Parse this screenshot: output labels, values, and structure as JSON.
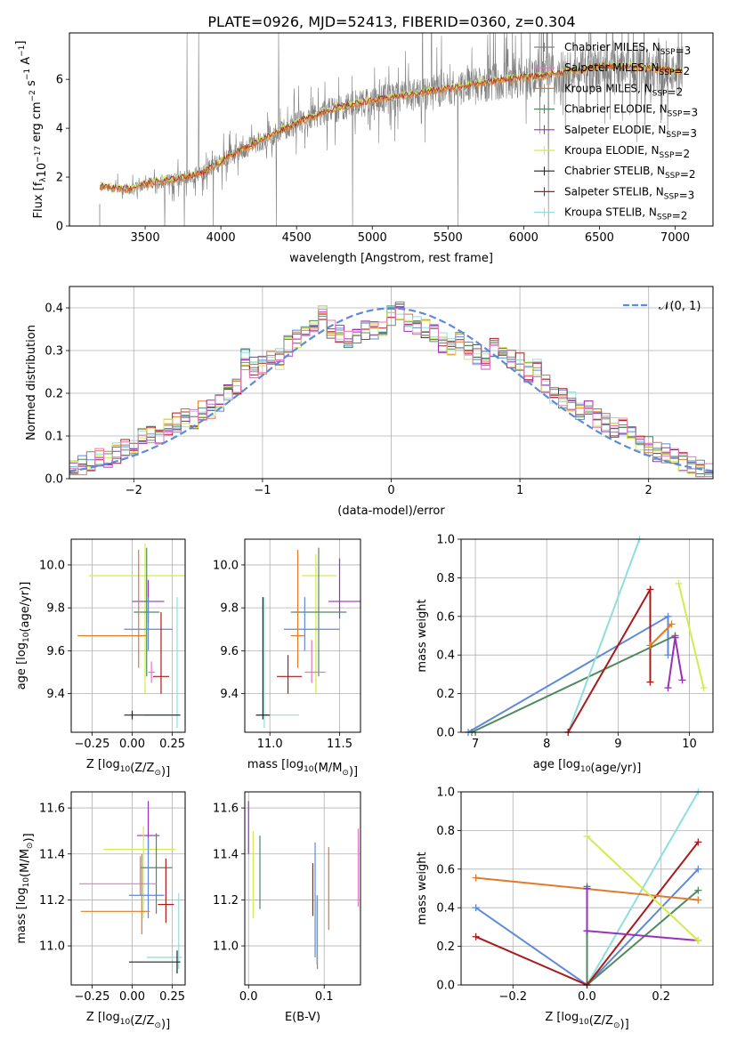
{
  "title": "PLATE=0926, MJD=52413, FIBERID=0360, z=0.304",
  "colors": {
    "Chabrier MILES": "#7f7f7f",
    "Salpeter MILES": "#e377c2",
    "Kroupa MILES": "#ff7f0e",
    "Chabrier ELODIE": "#2ca02c",
    "Salpeter ELODIE": "#9b30b8",
    "Kroupa ELODIE": "#d5e84a",
    "Chabrier STELIB": "#333333",
    "Salpeter STELIB": "#cc1111",
    "Kroupa STELIB": "#7fd6d6",
    "c_blue": "#5f8ad9",
    "c_orange": "#e07b2a",
    "c_green": "#4f8a5f",
    "c_cyan": "#8fdede",
    "c_red": "#aa1a1a",
    "c_purple": "#9b30b8",
    "c_yellow": "#d5ea50",
    "c_gray": "#808080",
    "c_pink": "#e377c2",
    "c_black": "#222222",
    "c_normal": "#5b8bd9"
  },
  "chart_data": [
    {
      "id": "spectrum",
      "type": "line",
      "xlabel": "wavelength [Angstrom, rest frame]",
      "ylabel_parts": [
        "Flux [f",
        "λ",
        "10",
        "−17",
        " erg cm",
        "−2",
        " s",
        "−1",
        " A",
        "−1",
        "]"
      ],
      "xlim": [
        3000,
        7250
      ],
      "ylim": [
        0,
        7.9
      ],
      "xticks": [
        3500,
        4000,
        4500,
        5000,
        5500,
        6000,
        6500,
        7000
      ],
      "yticks": [
        0,
        2,
        4,
        6
      ],
      "legend_position": "upper right",
      "legend": [
        {
          "label": "Chabrier MILES, N",
          "sub": "SSP",
          "tail": "=3",
          "color_key": "c_gray"
        },
        {
          "label": "Salpeter MILES, N",
          "sub": "SSP",
          "tail": "=2",
          "color_key": "c_pink"
        },
        {
          "label": "Kroupa MILES, N",
          "sub": "SSP",
          "tail": "=2",
          "color_key": "c_orange"
        },
        {
          "label": "Chabrier ELODIE, N",
          "sub": "SSP",
          "tail": "=3",
          "color_key": "c_green"
        },
        {
          "label": "Salpeter ELODIE, N",
          "sub": "SSP",
          "tail": "=3",
          "color_key": "c_purple"
        },
        {
          "label": "Kroupa ELODIE, N",
          "sub": "SSP",
          "tail": "=2",
          "color_key": "c_yellow"
        },
        {
          "label": "Chabrier STELIB, N",
          "sub": "SSP",
          "tail": "=2",
          "color_key": "c_black"
        },
        {
          "label": "Salpeter STELIB, N",
          "sub": "SSP",
          "tail": "=3",
          "color_key": "c_red"
        },
        {
          "label": "Kroupa STELIB, N",
          "sub": "SSP",
          "tail": "=2",
          "color_key": "c_cyan"
        }
      ],
      "data_range": [
        3200,
        7050
      ],
      "continuum": [
        [
          3200,
          1.6
        ],
        [
          3400,
          1.5
        ],
        [
          3500,
          1.7
        ],
        [
          3700,
          1.9
        ],
        [
          3850,
          2.1
        ],
        [
          3950,
          2.4
        ],
        [
          4100,
          3.0
        ],
        [
          4300,
          3.6
        ],
        [
          4500,
          4.2
        ],
        [
          4700,
          4.7
        ],
        [
          4900,
          5.0
        ],
        [
          5100,
          5.2
        ],
        [
          5300,
          5.4
        ],
        [
          5500,
          5.6
        ],
        [
          5700,
          5.8
        ],
        [
          5900,
          6.0
        ],
        [
          6100,
          6.1
        ],
        [
          6300,
          6.3
        ],
        [
          6500,
          6.5
        ],
        [
          6700,
          6.5
        ],
        [
          7050,
          6.3
        ]
      ]
    },
    {
      "id": "residuals",
      "type": "histogram",
      "xlabel": "(data-model)/error",
      "ylabel": "Normed distribution",
      "xlim": [
        -2.5,
        2.5
      ],
      "ylim": [
        0,
        0.45
      ],
      "xticks": [
        -2,
        -1,
        0,
        1,
        2
      ],
      "yticks": [
        0.0,
        0.1,
        0.2,
        0.3,
        0.4
      ],
      "legend_label": "𝒩(0, 1)",
      "legend_position": "upper right",
      "bin_width": 0.1,
      "base_shape": [
        0.03,
        0.03,
        0.04,
        0.05,
        0.05,
        0.06,
        0.07,
        0.08,
        0.1,
        0.1,
        0.1,
        0.12,
        0.13,
        0.14,
        0.14,
        0.16,
        0.16,
        0.18,
        0.2,
        0.21,
        0.28,
        0.26,
        0.27,
        0.29,
        0.28,
        0.31,
        0.33,
        0.35,
        0.36,
        0.38,
        0.35,
        0.34,
        0.33,
        0.34,
        0.35,
        0.35,
        0.36,
        0.38,
        0.39,
        0.37,
        0.36,
        0.35,
        0.34,
        0.32,
        0.31,
        0.32,
        0.3,
        0.29,
        0.28,
        0.31,
        0.29,
        0.28,
        0.27,
        0.25,
        0.26,
        0.22,
        0.2,
        0.19,
        0.18,
        0.16,
        0.17,
        0.14,
        0.13,
        0.12,
        0.12,
        0.1,
        0.09,
        0.08,
        0.06,
        0.06,
        0.05,
        0.04,
        0.03,
        0.02,
        0.02
      ]
    },
    {
      "id": "age_vs_Z",
      "type": "errorbar",
      "xlabel_parts": [
        "Z [log",
        "10",
        "(Z/Z",
        "⊙",
        ")]"
      ],
      "ylabel_parts": [
        "age  [log",
        "10",
        "(age/yr)]"
      ],
      "xlim": [
        -0.38,
        0.33
      ],
      "ylim": [
        9.22,
        10.12
      ],
      "xticks": [
        -0.25,
        0.0,
        0.25
      ],
      "yticks": [
        9.4,
        9.6,
        9.8,
        10.0
      ],
      "points": [
        {
          "c": "c_yellow",
          "x": 0.08,
          "xe": [
            0.35,
            0.3
          ],
          "y": 9.95,
          "ye": [
            0.55,
            0.15
          ]
        },
        {
          "c": "c_purple",
          "x": 0.1,
          "xe": [
            0.1,
            0.1
          ],
          "y": 9.83,
          "ye": [
            0.1,
            0.1
          ]
        },
        {
          "c": "c_green",
          "x": 0.09,
          "xe": [
            0.08,
            0.08
          ],
          "y": 9.78,
          "ye": [
            0.3,
            0.3
          ]
        },
        {
          "c": "c_blue",
          "x": 0.1,
          "xe": [
            0.15,
            0.15
          ],
          "y": 9.7,
          "ye": [
            0.1,
            0.15
          ]
        },
        {
          "c": "c_orange",
          "x": 0.04,
          "xe": [
            0.38,
            0.05
          ],
          "y": 9.67,
          "ye": [
            0.15,
            0.4
          ]
        },
        {
          "c": "c_red",
          "x": 0.18,
          "xe": [
            0.05,
            0.05
          ],
          "y": 9.48,
          "ye": [
            0.08,
            0.3
          ]
        },
        {
          "c": "c_cyan",
          "x": 0.28,
          "xe": [
            0.2,
            0.02
          ],
          "y": 9.3,
          "ye": [
            0.06,
            0.55
          ]
        },
        {
          "c": "c_black",
          "x": 0.0,
          "xe": [
            0.05,
            0.3
          ],
          "y": 9.3,
          "ye": [
            0.02,
            0.02
          ]
        },
        {
          "c": "c_pink",
          "x": 0.12,
          "xe": [
            0.02,
            0.02
          ],
          "y": 9.5,
          "ye": [
            0.05,
            0.05
          ]
        }
      ]
    },
    {
      "id": "age_vs_mass",
      "type": "errorbar",
      "xlabel_parts": [
        "mass [log",
        "10",
        "(M/M",
        "⊙",
        ")]"
      ],
      "xlim": [
        10.82,
        11.65
      ],
      "ylim": [
        9.22,
        10.12
      ],
      "xticks": [
        11.0,
        11.5
      ],
      "yticks": [
        9.4,
        9.6,
        9.8,
        10.0
      ],
      "points": [
        {
          "c": "c_yellow",
          "x": 11.33,
          "xe": [
            0.1,
            0.15
          ],
          "y": 9.95,
          "ye": [
            0.55,
            0.1
          ]
        },
        {
          "c": "c_purple",
          "x": 11.5,
          "xe": [
            0.08,
            0.15
          ],
          "y": 9.83,
          "ye": [
            0.08,
            0.2
          ]
        },
        {
          "c": "c_green",
          "x": 11.35,
          "xe": [
            0.2,
            0.2
          ],
          "y": 9.78,
          "ye": [
            0.3,
            0.3
          ]
        },
        {
          "c": "c_blue",
          "x": 11.25,
          "xe": [
            0.15,
            0.25
          ],
          "y": 9.7,
          "ye": [
            0.1,
            0.15
          ]
        },
        {
          "c": "c_orange",
          "x": 11.2,
          "xe": [
            0.05,
            0.05
          ],
          "y": 9.67,
          "ye": [
            0.15,
            0.4
          ]
        },
        {
          "c": "c_red",
          "x": 11.13,
          "xe": [
            0.08,
            0.1
          ],
          "y": 9.48,
          "ye": [
            0.08,
            0.1
          ]
        },
        {
          "c": "c_cyan",
          "x": 10.96,
          "xe": [
            0.02,
            0.25
          ],
          "y": 9.3,
          "ye": [
            0.06,
            0.55
          ]
        },
        {
          "c": "c_black",
          "x": 10.95,
          "xe": [
            0.05,
            0.05
          ],
          "y": 9.3,
          "ye": [
            0.02,
            0.55
          ]
        },
        {
          "c": "c_pink",
          "x": 11.3,
          "xe": [
            0.05,
            0.1
          ],
          "y": 9.5,
          "ye": [
            0.05,
            0.15
          ]
        }
      ]
    },
    {
      "id": "weight_vs_age",
      "type": "line",
      "xlabel_parts": [
        "age  [log",
        "10",
        "(age/yr)]"
      ],
      "ylabel": "mass weight",
      "xlim": [
        6.8,
        10.33
      ],
      "ylim": [
        0,
        1.0
      ],
      "xticks": [
        7,
        8,
        9,
        10
      ],
      "yticks": [
        0.0,
        0.2,
        0.4,
        0.6,
        0.8,
        1.0
      ],
      "series": [
        {
          "c": "c_blue",
          "x": [
            6.9,
            9.7,
            9.7
          ],
          "y": [
            0,
            0.6,
            0.4
          ]
        },
        {
          "c": "c_green",
          "x": [
            6.95,
            9.8,
            9.8
          ],
          "y": [
            0,
            0.5,
            0.5
          ]
        },
        {
          "c": "c_cyan",
          "x": [
            8.3,
            9.3
          ],
          "y": [
            0,
            1.0
          ]
        },
        {
          "c": "c_red",
          "x": [
            8.3,
            9.45,
            9.45
          ],
          "y": [
            0,
            0.74,
            0.26
          ]
        },
        {
          "c": "c_orange",
          "x": [
            9.45,
            9.75
          ],
          "y": [
            0.45,
            0.56
          ]
        },
        {
          "c": "c_purple",
          "x": [
            9.7,
            9.8,
            9.9
          ],
          "y": [
            0.23,
            0.49,
            0.27
          ]
        },
        {
          "c": "c_yellow",
          "x": [
            9.85,
            10.2
          ],
          "y": [
            0.77,
            0.23
          ]
        }
      ]
    },
    {
      "id": "mass_vs_Z",
      "type": "errorbar",
      "xlabel_parts": [
        "Z [log",
        "10",
        "(Z/Z",
        "⊙",
        ")]"
      ],
      "ylabel_parts": [
        "mass [log",
        "10",
        "(M/M",
        "⊙",
        ")]"
      ],
      "xlim": [
        -0.38,
        0.33
      ],
      "ylim": [
        10.83,
        11.67
      ],
      "xticks": [
        -0.25,
        0.0,
        0.25
      ],
      "yticks": [
        11.0,
        11.2,
        11.4,
        11.6
      ],
      "points": [
        {
          "c": "c_purple",
          "x": 0.1,
          "xe": [
            0.07,
            0.07
          ],
          "y": 11.48,
          "ye": [
            0.08,
            0.15
          ]
        },
        {
          "c": "c_yellow",
          "x": 0.07,
          "xe": [
            0.25,
            0.2
          ],
          "y": 11.42,
          "ye": [
            0.3,
            0.1
          ]
        },
        {
          "c": "c_green",
          "x": 0.15,
          "xe": [
            0.1,
            0.1
          ],
          "y": 11.34,
          "ye": [
            0.2,
            0.15
          ]
        },
        {
          "c": "c_pink",
          "x": 0.05,
          "xe": [
            0.38,
            0.1
          ],
          "y": 11.27,
          "ye": [
            0.05,
            0.12
          ]
        },
        {
          "c": "c_blue",
          "x": 0.1,
          "xe": [
            0.12,
            0.1
          ],
          "y": 11.22,
          "ye": [
            0.1,
            0.25
          ]
        },
        {
          "c": "c_red",
          "x": 0.21,
          "xe": [
            0.05,
            0.05
          ],
          "y": 11.18,
          "ye": [
            0.08,
            0.2
          ]
        },
        {
          "c": "c_orange",
          "x": 0.06,
          "xe": [
            0.38,
            0.05
          ],
          "y": 11.15,
          "ye": [
            0.1,
            0.25
          ]
        },
        {
          "c": "c_cyan",
          "x": 0.29,
          "xe": [
            0.2,
            0.02
          ],
          "y": 10.95,
          "ye": [
            0.05,
            0.28
          ]
        },
        {
          "c": "c_black",
          "x": 0.28,
          "xe": [
            0.3,
            0.02
          ],
          "y": 10.93,
          "ye": [
            0.05,
            0.05
          ]
        }
      ]
    },
    {
      "id": "mass_vs_EBV",
      "type": "errorbar",
      "xlabel": "E(B-V)",
      "xlim": [
        -0.005,
        0.148
      ],
      "ylim": [
        10.83,
        11.67
      ],
      "xticks": [
        0.0,
        0.1
      ],
      "yticks": [
        11.0,
        11.2,
        11.4,
        11.6
      ],
      "points": [
        {
          "c": "c_purple",
          "x": 0.0,
          "xe": [
            0,
            0
          ],
          "y": 11.48,
          "ye": [
            0.08,
            0.15
          ]
        },
        {
          "c": "c_yellow",
          "x": 0.006,
          "xe": [
            0,
            0
          ],
          "y": 11.3,
          "ye": [
            0.18,
            0.2
          ]
        },
        {
          "c": "c_green",
          "x": 0.015,
          "xe": [
            0,
            0
          ],
          "y": 11.3,
          "ye": [
            0.14,
            0.18
          ]
        },
        {
          "c": "c_red",
          "x": 0.085,
          "xe": [
            0,
            0
          ],
          "y": 11.25,
          "ye": [
            0.12,
            0.11
          ]
        },
        {
          "c": "c_blue",
          "x": 0.088,
          "xe": [
            0,
            0
          ],
          "y": 11.25,
          "ye": [
            0.3,
            0.2
          ]
        },
        {
          "c": "c_gray",
          "x": 0.091,
          "xe": [
            0,
            0
          ],
          "y": 11.05,
          "ye": [
            0.15,
            0.17
          ]
        },
        {
          "c": "c_cyan",
          "x": 0.09,
          "xe": [
            0,
            0
          ],
          "y": 11.0,
          "ye": [
            0.08,
            0.22
          ]
        },
        {
          "c": "c_orange",
          "x": 0.106,
          "xe": [
            0,
            0
          ],
          "y": 11.25,
          "ye": [
            0.18,
            0.18
          ]
        },
        {
          "c": "c_pink",
          "x": 0.145,
          "xe": [
            0,
            0
          ],
          "y": 11.35,
          "ye": [
            0.18,
            0.16
          ]
        }
      ]
    },
    {
      "id": "weight_vs_Z",
      "type": "line",
      "xlabel_parts": [
        "Z [log",
        "10",
        "(Z/Z",
        "⊙",
        ")]"
      ],
      "ylabel": "mass weight",
      "xlim": [
        -0.34,
        0.34
      ],
      "ylim": [
        0,
        1.0
      ],
      "xticks": [
        -0.2,
        0.0,
        0.2
      ],
      "yticks": [
        0.0,
        0.2,
        0.4,
        0.6,
        0.8,
        1.0
      ],
      "series": [
        {
          "c": "c_blue",
          "x": [
            -0.3,
            0.0,
            0.3
          ],
          "y": [
            0.4,
            0,
            0.6
          ]
        },
        {
          "c": "c_green",
          "x": [
            0.0,
            0.0,
            0.3
          ],
          "y": [
            0.51,
            0,
            0.49
          ]
        },
        {
          "c": "c_cyan",
          "x": [
            0.0,
            0.3
          ],
          "y": [
            0,
            1.0
          ]
        },
        {
          "c": "c_red",
          "x": [
            -0.3,
            0.0,
            0.3
          ],
          "y": [
            0.25,
            0,
            0.74
          ]
        },
        {
          "c": "c_orange",
          "x": [
            -0.3,
            0.3
          ],
          "y": [
            0.555,
            0.44
          ]
        },
        {
          "c": "c_purple",
          "x": [
            0.0,
            0.0,
            0.0,
            0.3
          ],
          "y": [
            0.5,
            0.28,
            0.28,
            0.23
          ]
        },
        {
          "c": "c_yellow",
          "x": [
            0.0,
            0.3
          ],
          "y": [
            0.77,
            0.23
          ]
        }
      ]
    }
  ]
}
